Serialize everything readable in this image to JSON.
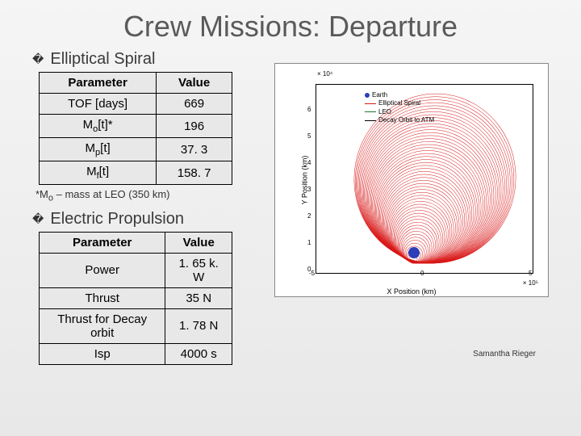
{
  "title": "Crew Missions: Departure",
  "section1": {
    "title": "Elliptical Spiral",
    "headers": {
      "param": "Parameter",
      "value": "Value"
    },
    "rows": [
      {
        "param": "TOF [days]",
        "value": "669"
      },
      {
        "param": "M<span class=sub>o</span>[t]*",
        "value": "196"
      },
      {
        "param": "M<span class=sub>p</span>[t]",
        "value": "37. 3"
      },
      {
        "param": "M<span class=sub>f</span>[t]",
        "value": "158. 7"
      }
    ],
    "footnote": "*M<span class=sub>o</span> – mass at LEO (350 km)"
  },
  "section2": {
    "title": "Electric Propulsion",
    "headers": {
      "param": "Parameter",
      "value": "Value"
    },
    "rows": [
      {
        "param": "Power",
        "value": "1. 65 k. W"
      },
      {
        "param": "Thrust",
        "value": "35 N"
      },
      {
        "param": "Thrust for Decay orbit",
        "value": "1. 78 N"
      },
      {
        "param": "Isp",
        "value": "4000 s"
      }
    ]
  },
  "chart": {
    "xlabel": "X Position (km)",
    "ylabel": "Y Position (km)",
    "exp_top": "× 10⁴",
    "exp_bot": "× 10⁵",
    "legend": [
      "Earth",
      "Elliptical Spiral",
      "LEO",
      "Decay Orbit to ATM"
    ],
    "xticks": [
      "-5",
      "0",
      "5"
    ],
    "yticks": [
      "0",
      "1",
      "2",
      "3",
      "4",
      "5",
      "6"
    ],
    "spiral_color": "#d91818",
    "earth_color": "#2e3db8",
    "ellipse_count": 55
  },
  "credit": "Samantha Rieger"
}
